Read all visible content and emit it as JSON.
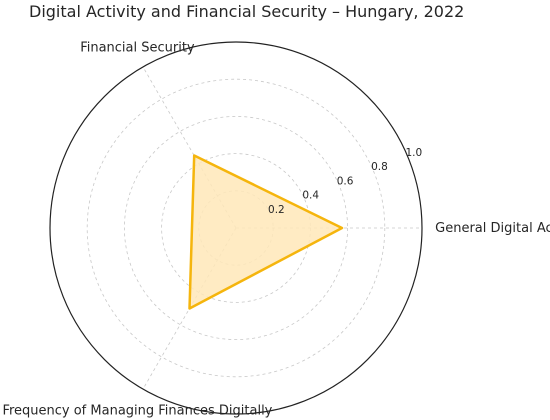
{
  "chart_data": {
    "type": "radar",
    "title": "Digital Activity and Financial Security – Hungary, 2022",
    "axes": [
      "General Digital Activity Frequency",
      "Financial Security",
      "Frequency of Managing Finances Digitally"
    ],
    "series": [
      {
        "values": [
          0.57,
          0.45,
          0.5
        ]
      }
    ],
    "rlim": [
      0,
      1.0
    ],
    "r_ticks": [
      {
        "value": 0.2,
        "label": "0.2"
      },
      {
        "value": 0.4,
        "label": "0.4"
      },
      {
        "value": 0.6,
        "label": "0.6"
      },
      {
        "value": 0.8,
        "label": "0.8"
      },
      {
        "value": 1.0,
        "label": "1.0"
      }
    ],
    "grid": true,
    "colors": {
      "line": "#f5b50d",
      "fill": "#ffe8b8",
      "grid": "#c8c8c8",
      "frame": "#222222"
    }
  }
}
